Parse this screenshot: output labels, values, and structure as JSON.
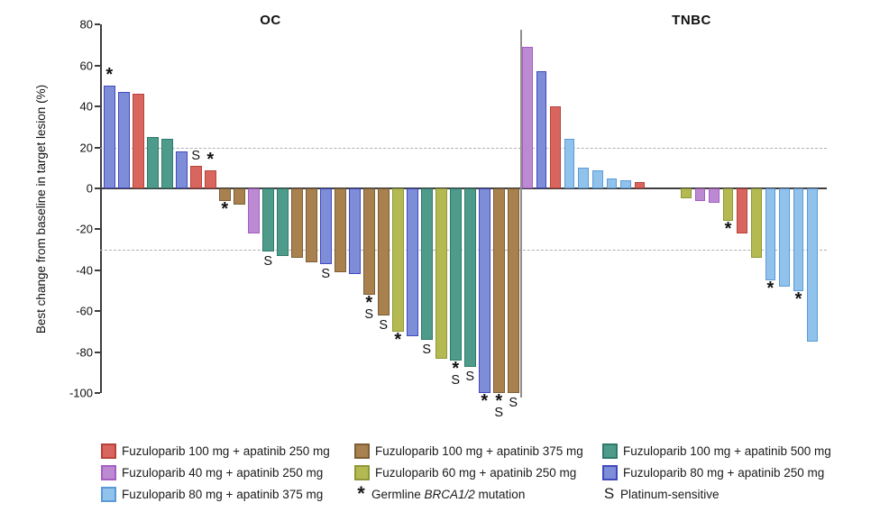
{
  "figure": {
    "y_axis_label": "Best change from baseline in target lesion (%)"
  },
  "chart_data": {
    "type": "bar",
    "subtype": "waterfall",
    "ylabel": "Best change from baseline in target lesion (%)",
    "ylim": [
      -100,
      80
    ],
    "yticks": [
      80,
      60,
      40,
      20,
      0,
      -20,
      -40,
      -60,
      -80,
      -100
    ],
    "ref_lines": [
      20,
      -30
    ],
    "grid": false,
    "marks_meaning": {
      "*": "Germline BRCA1/2 mutation",
      "S": "Platinum-sensitive"
    },
    "colors": {
      "red": {
        "fill": "#D8665F",
        "border": "#B8423A"
      },
      "violet": {
        "fill": "#BC8AD2",
        "border": "#A55EC2"
      },
      "sky": {
        "fill": "#90C2EC",
        "border": "#5C9AD6"
      },
      "brown": {
        "fill": "#A8814E",
        "border": "#7D5E35"
      },
      "olive": {
        "fill": "#B4B951",
        "border": "#8F9838"
      },
      "teal": {
        "fill": "#4E9A8B",
        "border": "#2F7A6B"
      },
      "slate": {
        "fill": "#7E8DD8",
        "border": "#4149BE"
      }
    },
    "sections": [
      {
        "label": "OC",
        "bars": [
          {
            "v": 50,
            "c": "slate",
            "m": "*"
          },
          {
            "v": 47,
            "c": "slate"
          },
          {
            "v": 46,
            "c": "red"
          },
          {
            "v": 25,
            "c": "teal"
          },
          {
            "v": 24,
            "c": "teal"
          },
          {
            "v": 18,
            "c": "slate"
          },
          {
            "v": 11,
            "c": "red",
            "m": "S"
          },
          {
            "v": 9,
            "c": "red",
            "m": "*"
          },
          {
            "v": -6,
            "c": "brown",
            "m": "*"
          },
          {
            "v": -8,
            "c": "brown"
          },
          {
            "v": -22,
            "c": "violet"
          },
          {
            "v": -31,
            "c": "teal",
            "m": "S"
          },
          {
            "v": -33,
            "c": "teal"
          },
          {
            "v": -34,
            "c": "brown"
          },
          {
            "v": -36,
            "c": "brown"
          },
          {
            "v": -37,
            "c": "slate",
            "m": "S"
          },
          {
            "v": -41,
            "c": "brown"
          },
          {
            "v": -42,
            "c": "slate"
          },
          {
            "v": -52,
            "c": "brown",
            "m": "*S"
          },
          {
            "v": -62,
            "c": "brown",
            "m": "S"
          },
          {
            "v": -70,
            "c": "olive",
            "m": "*"
          },
          {
            "v": -72,
            "c": "slate"
          },
          {
            "v": -74,
            "c": "teal",
            "m": "S"
          },
          {
            "v": -83,
            "c": "olive"
          },
          {
            "v": -84,
            "c": "teal",
            "m": "*S"
          },
          {
            "v": -87,
            "c": "teal",
            "m": "S"
          },
          {
            "v": -100,
            "c": "slate",
            "m": "*"
          },
          {
            "v": -100,
            "c": "brown",
            "m": "*S"
          },
          {
            "v": -100,
            "c": "brown",
            "m": "S"
          }
        ]
      },
      {
        "label": "TNBC",
        "bars": [
          {
            "v": 69,
            "c": "violet"
          },
          {
            "v": 57,
            "c": "slate"
          },
          {
            "v": 40,
            "c": "red"
          },
          {
            "v": 24,
            "c": "sky"
          },
          {
            "v": 10,
            "c": "sky"
          },
          {
            "v": 9,
            "c": "sky"
          },
          {
            "v": 5,
            "c": "sky"
          },
          {
            "v": 4,
            "c": "sky"
          },
          {
            "v": 3,
            "c": "red"
          },
          {
            "v": -5,
            "c": "olive"
          },
          {
            "v": -6,
            "c": "violet"
          },
          {
            "v": -7,
            "c": "violet"
          },
          {
            "v": -16,
            "c": "olive",
            "m": "*"
          },
          {
            "v": -22,
            "c": "red"
          },
          {
            "v": -34,
            "c": "olive"
          },
          {
            "v": -45,
            "c": "sky",
            "m": "*"
          },
          {
            "v": -48,
            "c": "sky"
          },
          {
            "v": -50,
            "c": "sky",
            "m": "*"
          },
          {
            "v": -75,
            "c": "sky"
          }
        ]
      }
    ]
  },
  "legend": {
    "columns": [
      [
        {
          "swatch": "red",
          "label": "Fuzuloparib 100 mg + apatinib 250 mg"
        },
        {
          "swatch": "violet",
          "label": "Fuzuloparib 40 mg + apatinib 250 mg"
        },
        {
          "swatch": "sky",
          "label": "Fuzuloparib 80 mg + apatinib 375 mg"
        }
      ],
      [
        {
          "swatch": "brown",
          "label": "Fuzuloparib 100 mg + apatinib 375 mg"
        },
        {
          "swatch": "olive",
          "label": "Fuzuloparib 60 mg + apatinib 250 mg"
        },
        {
          "sym": "*",
          "label_prefix": "Germline ",
          "label_italic": "BRCA1/2",
          "label_suffix": " mutation"
        }
      ],
      [
        {
          "swatch": "teal",
          "label": "Fuzuloparib 100 mg + apatinib 500 mg"
        },
        {
          "swatch": "slate",
          "label": "Fuzuloparib 80 mg + apatinib 250 mg"
        },
        {
          "sym": "S",
          "label": "Platinum-sensitive"
        }
      ]
    ]
  }
}
